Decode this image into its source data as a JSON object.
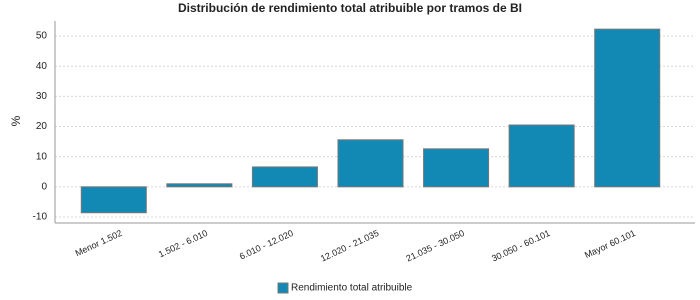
{
  "chart_data": {
    "type": "bar",
    "title": "Distribución de rendimiento total atribuible por tramos de BI",
    "y_label": "%",
    "categories": [
      "Menor 1.502",
      "1.502 - 6.010",
      "6.010 - 12.020",
      "12.020 - 21.035",
      "21.035 - 30.050",
      "30.050 - 60.101",
      "Mayor 60.101"
    ],
    "series": [
      {
        "name": "Rendimiento total atribuible",
        "color": "#1289b4",
        "values": [
          -8.6,
          1.0,
          6.6,
          15.6,
          12.6,
          20.5,
          52.3
        ]
      }
    ],
    "ylim": [
      -12,
      55
    ],
    "yticks": [
      -10,
      0,
      10,
      20,
      30,
      40,
      50
    ],
    "grid": true
  }
}
